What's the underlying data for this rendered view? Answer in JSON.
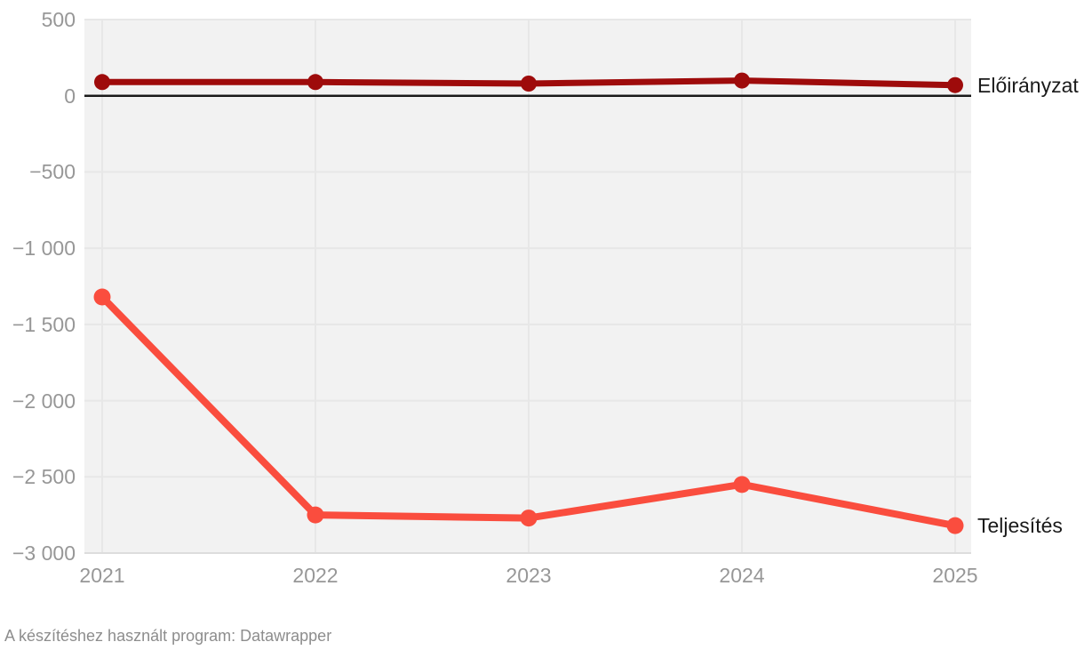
{
  "chart_data": {
    "type": "line",
    "x": [
      2021,
      2022,
      2023,
      2024,
      2025
    ],
    "x_tick_labels": [
      "2021",
      "2022",
      "2023",
      "2024",
      "2025"
    ],
    "series": [
      {
        "name": "Előirányzat",
        "values": [
          90,
          90,
          80,
          100,
          70
        ],
        "color": "#9e0b0b",
        "stroke_width": 7,
        "marker_radius": 9
      },
      {
        "name": "Teljesítés",
        "values": [
          -1320,
          -2750,
          -2770,
          -2550,
          -2820
        ],
        "color": "#fa4d3e",
        "stroke_width": 8,
        "marker_radius": 9.5
      }
    ],
    "ylim": [
      -3000,
      500
    ],
    "y_ticks": [
      500,
      0,
      -500,
      -1000,
      -1500,
      -2000,
      -2500,
      -3000
    ],
    "y_tick_labels": [
      "500",
      "0",
      "−500",
      "−1 000",
      "−1 500",
      "−2 000",
      "−2 500",
      "−3 000"
    ],
    "grid": true,
    "zero_line": true,
    "legend_position": "right-of-line-ends",
    "style": {
      "plot_background": "#f2f2f2",
      "grid_color": "#e7e7e7",
      "baseline_color": "#dddddd",
      "zero_line_color": "#1a1a1a",
      "tick_label_color": "#979797",
      "series_label_color": "#1a1a1a"
    }
  },
  "footer": {
    "credit": "A készítéshez használt program: Datawrapper"
  }
}
